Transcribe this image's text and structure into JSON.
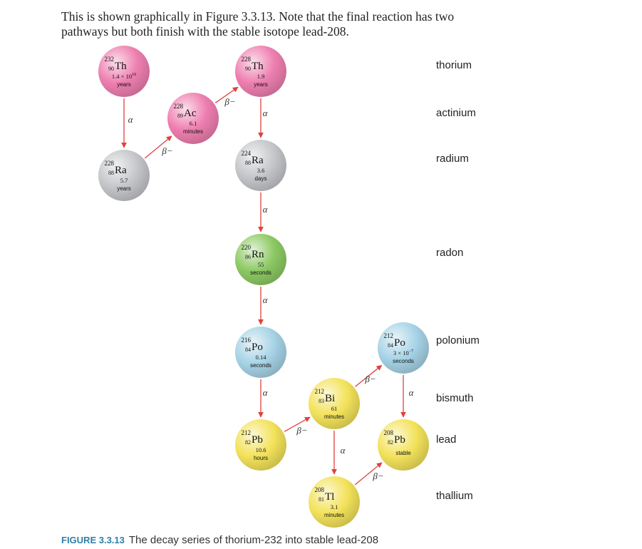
{
  "intro": {
    "line1": "This is shown graphically in Figure 3.3.13. Note that the final reaction has two",
    "line2": "pathways but both finish with the stable isotope lead-208."
  },
  "row_labels": [
    "thorium",
    "actinium",
    "radium",
    "radon",
    "polonium",
    "bismuth",
    "lead",
    "thallium"
  ],
  "colors": {
    "thorium": "#ee7fb0",
    "actinium": "#ee7fb0",
    "radium": "#c4c6c9",
    "radon": "#8cc963",
    "polonium": "#a6d3e6",
    "bismuth": "#f3e25a",
    "lead": "#f3e25a",
    "thallium": "#f3e25a",
    "arrow": "#e0423c"
  },
  "nuclides": [
    {
      "id": "th232",
      "symbol": "Th",
      "mass": "232",
      "z": "90",
      "halflife": "1.4 × 10",
      "exp": "10",
      "unit": "years",
      "element": "thorium"
    },
    {
      "id": "ra228",
      "symbol": "Ra",
      "mass": "228",
      "z": "88",
      "halflife": "5.7",
      "unit": "years",
      "element": "radium"
    },
    {
      "id": "ac228",
      "symbol": "Ac",
      "mass": "228",
      "z": "89",
      "halflife": "6.1",
      "unit": "minutes",
      "element": "actinium"
    },
    {
      "id": "th228",
      "symbol": "Th",
      "mass": "228",
      "z": "90",
      "halflife": "1.9",
      "unit": "years",
      "element": "thorium"
    },
    {
      "id": "ra224",
      "symbol": "Ra",
      "mass": "224",
      "z": "88",
      "halflife": "3.6",
      "unit": "days",
      "element": "radium"
    },
    {
      "id": "rn220",
      "symbol": "Rn",
      "mass": "220",
      "z": "86",
      "halflife": "55",
      "unit": "seconds",
      "element": "radon"
    },
    {
      "id": "po216",
      "symbol": "Po",
      "mass": "216",
      "z": "84",
      "halflife": "0.14",
      "unit": "seconds",
      "element": "polonium"
    },
    {
      "id": "pb212",
      "symbol": "Pb",
      "mass": "212",
      "z": "82",
      "halflife": "10.6",
      "unit": "hours",
      "element": "lead"
    },
    {
      "id": "bi212",
      "symbol": "Bi",
      "mass": "212",
      "z": "83",
      "halflife": "61",
      "unit": "minutes",
      "element": "bismuth"
    },
    {
      "id": "po212",
      "symbol": "Po",
      "mass": "212",
      "z": "84",
      "halflife": "3 × 10",
      "exp": "−7",
      "unit": "seconds",
      "element": "polonium"
    },
    {
      "id": "pb208",
      "symbol": "Pb",
      "mass": "208",
      "z": "82",
      "halflife": "",
      "unit": "stable",
      "element": "lead"
    },
    {
      "id": "tl208",
      "symbol": "Tl",
      "mass": "208",
      "z": "81",
      "halflife": "3.1",
      "unit": "minutes",
      "element": "thallium"
    }
  ],
  "decays": [
    {
      "from": "th232",
      "to": "ra228",
      "mode": "α"
    },
    {
      "from": "ra228",
      "to": "ac228",
      "mode": "β−"
    },
    {
      "from": "ac228",
      "to": "th228",
      "mode": "β−"
    },
    {
      "from": "th228",
      "to": "ra224",
      "mode": "α"
    },
    {
      "from": "ra224",
      "to": "rn220",
      "mode": "α"
    },
    {
      "from": "rn220",
      "to": "po216",
      "mode": "α"
    },
    {
      "from": "po216",
      "to": "pb212",
      "mode": "α"
    },
    {
      "from": "pb212",
      "to": "bi212",
      "mode": "β−"
    },
    {
      "from": "bi212",
      "to": "po212",
      "mode": "β−"
    },
    {
      "from": "bi212",
      "to": "tl208",
      "mode": "α"
    },
    {
      "from": "po212",
      "to": "pb208",
      "mode": "α"
    },
    {
      "from": "tl208",
      "to": "pb208",
      "mode": "β−"
    }
  ],
  "caption": {
    "label": "FIGURE 3.3.13",
    "text": "The decay series of thorium-232 into stable lead-208"
  }
}
